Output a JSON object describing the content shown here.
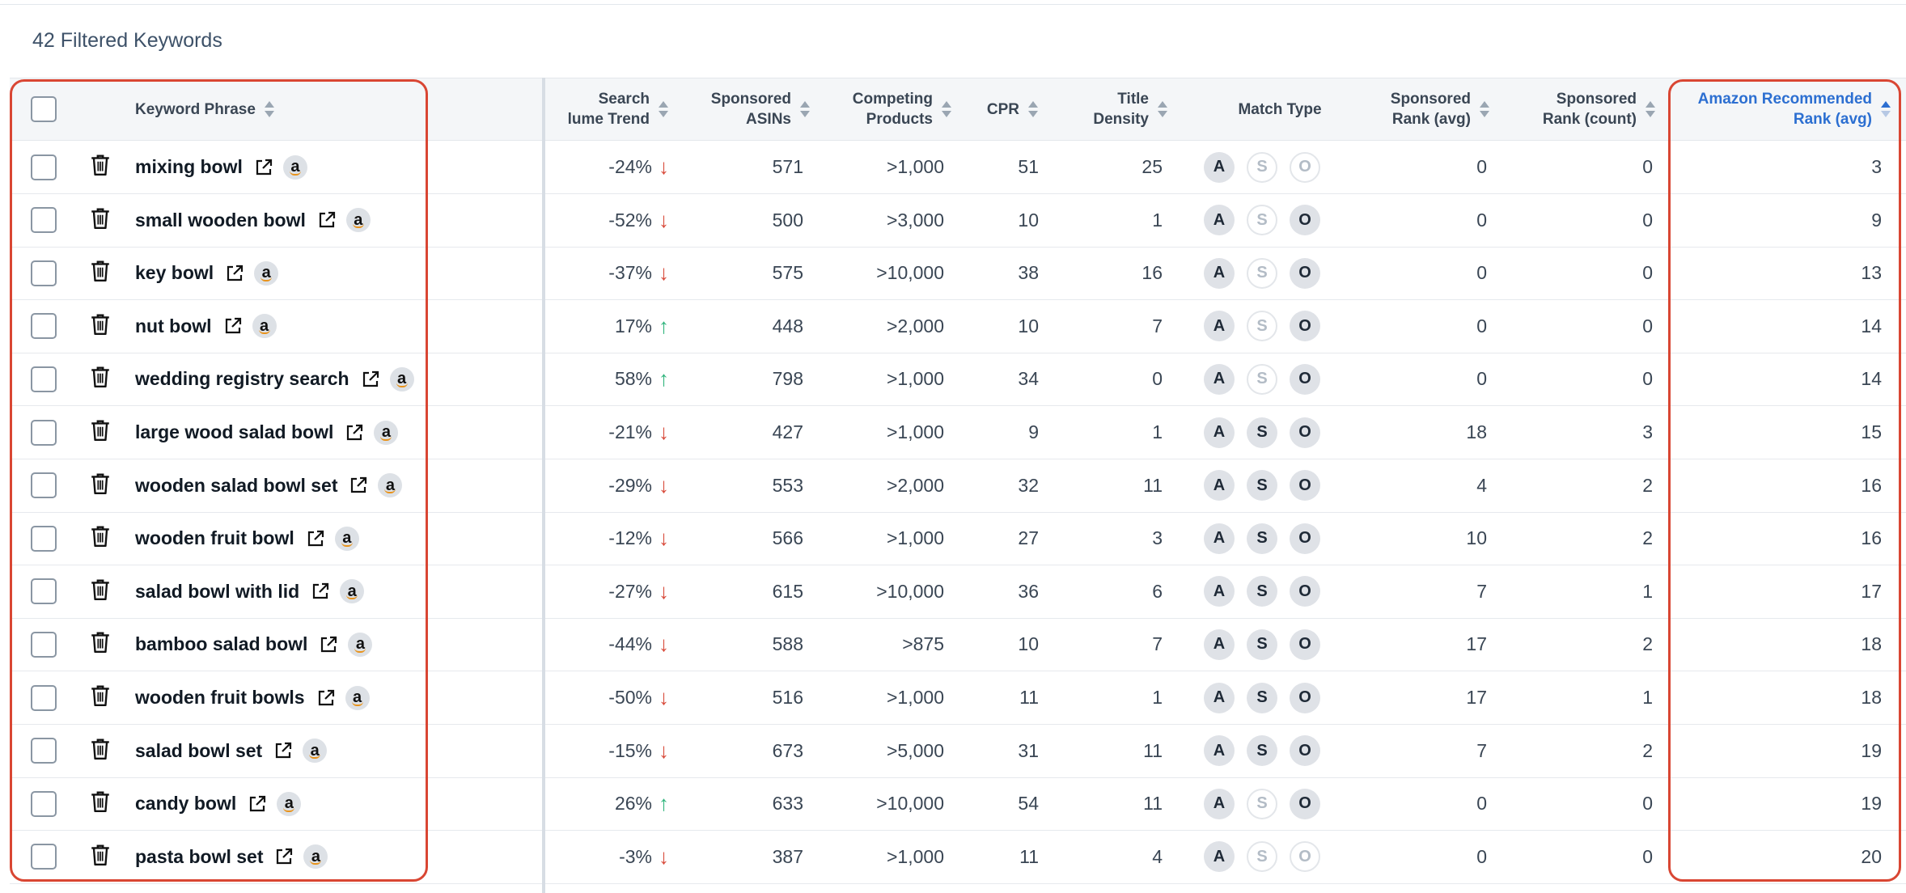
{
  "summary": {
    "title": "42 Filtered Keywords"
  },
  "columns": {
    "keyword_phrase": [
      "Keyword Phrase"
    ],
    "search_volume_trend": [
      "Search",
      "lume Trend"
    ],
    "sponsored_asins": [
      "Sponsored",
      "ASINs"
    ],
    "competing_products": [
      "Competing",
      "Products"
    ],
    "cpr": [
      "CPR"
    ],
    "title_density": [
      "Title",
      "Density"
    ],
    "match_type": [
      "Match Type"
    ],
    "sponsored_rank_avg": [
      "Sponsored",
      "Rank (avg)"
    ],
    "sponsored_rank_count": [
      "Sponsored",
      "Rank (count)"
    ],
    "amazon_recommended_rank": [
      "Amazon Recommended",
      "Rank (avg)"
    ]
  },
  "match_letters": [
    "A",
    "S",
    "O"
  ],
  "amazon_glyph": "a",
  "icons": {
    "row_delete": "trash-icon",
    "keyword_link": "external-link-icon",
    "amazon": "amazon-icon",
    "trend_down": "arrow-down-icon",
    "trend_up": "arrow-up-icon"
  },
  "colors": {
    "highlight": "#d94633",
    "active_sort": "#2c6fd1",
    "trend_down": "#d84a3a",
    "trend_up": "#2fb47c"
  },
  "rows": [
    {
      "keyword": "mixing bowl",
      "trend": "-24%",
      "direction": "down",
      "sponsored_asins": "571",
      "competing_products": ">1,000",
      "cpr": "51",
      "title_density": "25",
      "match": {
        "A": true,
        "S": false,
        "O": false
      },
      "sponsored_rank_avg": "0",
      "sponsored_rank_count": "0",
      "amazon_rank": "3"
    },
    {
      "keyword": "small wooden bowl",
      "trend": "-52%",
      "direction": "down",
      "sponsored_asins": "500",
      "competing_products": ">3,000",
      "cpr": "10",
      "title_density": "1",
      "match": {
        "A": true,
        "S": false,
        "O": true
      },
      "sponsored_rank_avg": "0",
      "sponsored_rank_count": "0",
      "amazon_rank": "9"
    },
    {
      "keyword": "key bowl",
      "trend": "-37%",
      "direction": "down",
      "sponsored_asins": "575",
      "competing_products": ">10,000",
      "cpr": "38",
      "title_density": "16",
      "match": {
        "A": true,
        "S": false,
        "O": true
      },
      "sponsored_rank_avg": "0",
      "sponsored_rank_count": "0",
      "amazon_rank": "13"
    },
    {
      "keyword": "nut bowl",
      "trend": "17%",
      "direction": "up",
      "sponsored_asins": "448",
      "competing_products": ">2,000",
      "cpr": "10",
      "title_density": "7",
      "match": {
        "A": true,
        "S": false,
        "O": true
      },
      "sponsored_rank_avg": "0",
      "sponsored_rank_count": "0",
      "amazon_rank": "14"
    },
    {
      "keyword": "wedding registry search",
      "trend": "58%",
      "direction": "up",
      "sponsored_asins": "798",
      "competing_products": ">1,000",
      "cpr": "34",
      "title_density": "0",
      "match": {
        "A": true,
        "S": false,
        "O": true
      },
      "sponsored_rank_avg": "0",
      "sponsored_rank_count": "0",
      "amazon_rank": "14"
    },
    {
      "keyword": "large wood salad bowl",
      "trend": "-21%",
      "direction": "down",
      "sponsored_asins": "427",
      "competing_products": ">1,000",
      "cpr": "9",
      "title_density": "1",
      "match": {
        "A": true,
        "S": true,
        "O": true
      },
      "sponsored_rank_avg": "18",
      "sponsored_rank_count": "3",
      "amazon_rank": "15"
    },
    {
      "keyword": "wooden salad bowl set",
      "trend": "-29%",
      "direction": "down",
      "sponsored_asins": "553",
      "competing_products": ">2,000",
      "cpr": "32",
      "title_density": "11",
      "match": {
        "A": true,
        "S": true,
        "O": true
      },
      "sponsored_rank_avg": "4",
      "sponsored_rank_count": "2",
      "amazon_rank": "16"
    },
    {
      "keyword": "wooden fruit bowl",
      "trend": "-12%",
      "direction": "down",
      "sponsored_asins": "566",
      "competing_products": ">1,000",
      "cpr": "27",
      "title_density": "3",
      "match": {
        "A": true,
        "S": true,
        "O": true
      },
      "sponsored_rank_avg": "10",
      "sponsored_rank_count": "2",
      "amazon_rank": "16"
    },
    {
      "keyword": "salad bowl with lid",
      "trend": "-27%",
      "direction": "down",
      "sponsored_asins": "615",
      "competing_products": ">10,000",
      "cpr": "36",
      "title_density": "6",
      "match": {
        "A": true,
        "S": true,
        "O": true
      },
      "sponsored_rank_avg": "7",
      "sponsored_rank_count": "1",
      "amazon_rank": "17"
    },
    {
      "keyword": "bamboo salad bowl",
      "trend": "-44%",
      "direction": "down",
      "sponsored_asins": "588",
      "competing_products": ">875",
      "cpr": "10",
      "title_density": "7",
      "match": {
        "A": true,
        "S": true,
        "O": true
      },
      "sponsored_rank_avg": "17",
      "sponsored_rank_count": "2",
      "amazon_rank": "18"
    },
    {
      "keyword": "wooden fruit bowls",
      "trend": "-50%",
      "direction": "down",
      "sponsored_asins": "516",
      "competing_products": ">1,000",
      "cpr": "11",
      "title_density": "1",
      "match": {
        "A": true,
        "S": true,
        "O": true
      },
      "sponsored_rank_avg": "17",
      "sponsored_rank_count": "1",
      "amazon_rank": "18"
    },
    {
      "keyword": "salad bowl set",
      "trend": "-15%",
      "direction": "down",
      "sponsored_asins": "673",
      "competing_products": ">5,000",
      "cpr": "31",
      "title_density": "11",
      "match": {
        "A": true,
        "S": true,
        "O": true
      },
      "sponsored_rank_avg": "7",
      "sponsored_rank_count": "2",
      "amazon_rank": "19"
    },
    {
      "keyword": "candy bowl",
      "trend": "26%",
      "direction": "up",
      "sponsored_asins": "633",
      "competing_products": ">10,000",
      "cpr": "54",
      "title_density": "11",
      "match": {
        "A": true,
        "S": false,
        "O": true
      },
      "sponsored_rank_avg": "0",
      "sponsored_rank_count": "0",
      "amazon_rank": "19"
    },
    {
      "keyword": "pasta bowl set",
      "trend": "-3%",
      "direction": "down",
      "sponsored_asins": "387",
      "competing_products": ">1,000",
      "cpr": "11",
      "title_density": "4",
      "match": {
        "A": true,
        "S": false,
        "O": false
      },
      "sponsored_rank_avg": "0",
      "sponsored_rank_count": "0",
      "amazon_rank": "20"
    }
  ]
}
